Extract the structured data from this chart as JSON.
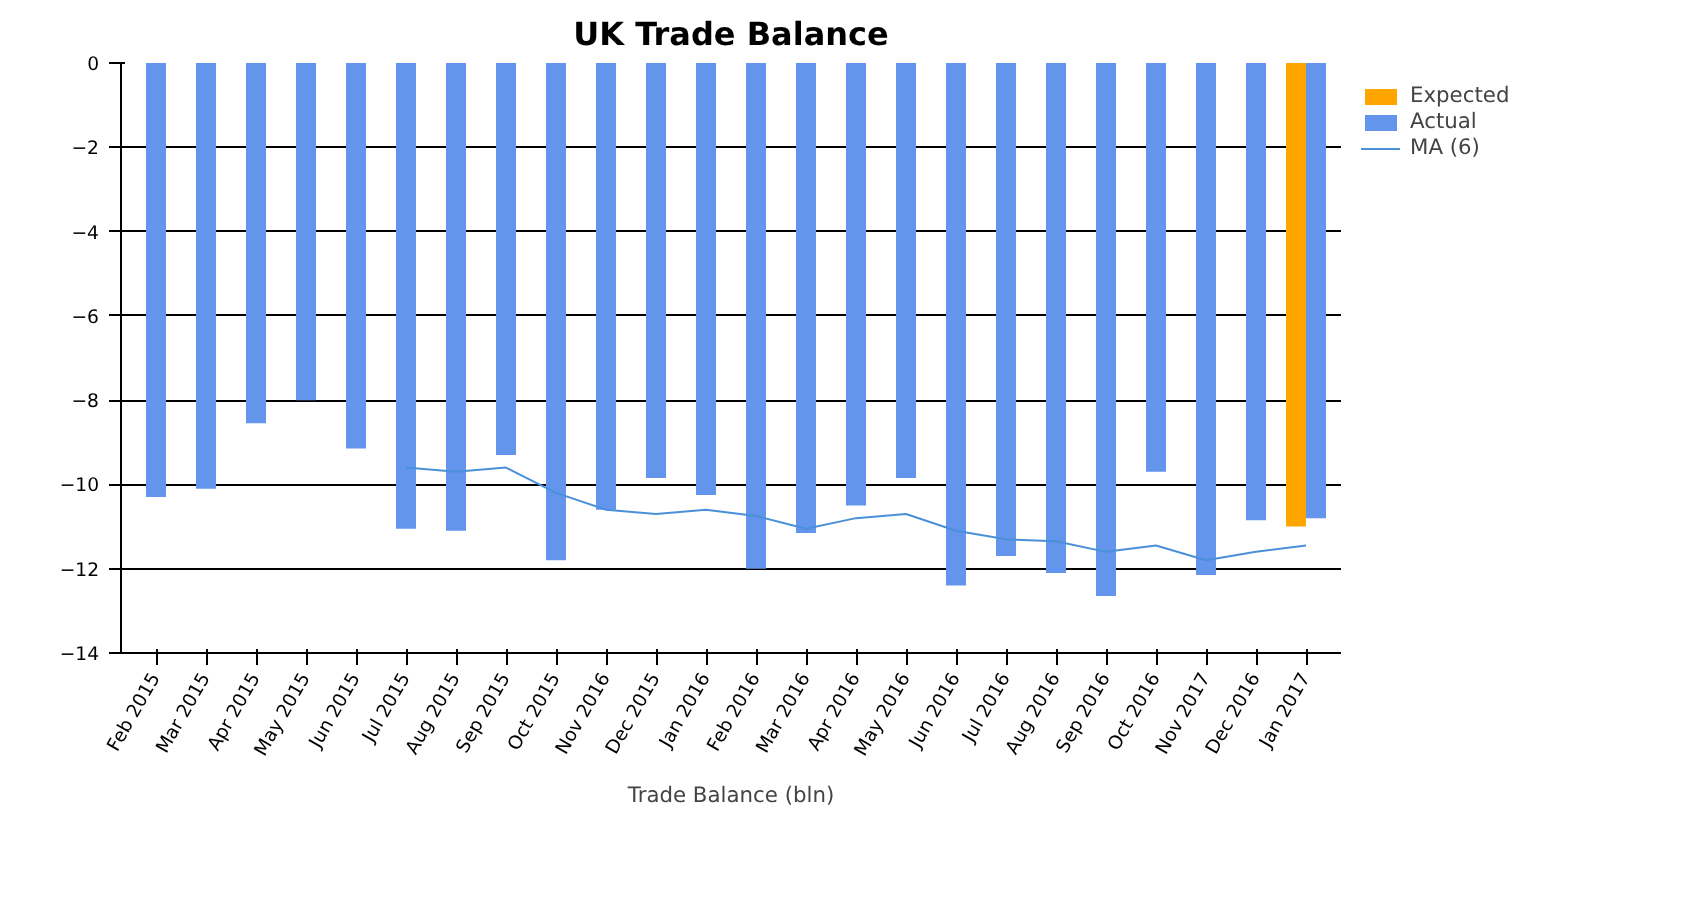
{
  "chart_data": {
    "type": "bar",
    "title": "UK Trade Balance",
    "xlabel": "Trade Balance (bln)",
    "categories": [
      "Feb 2015",
      "Mar 2015",
      "Apr 2015",
      "May 2015",
      "Jun 2015",
      "Jul 2015",
      "Aug 2015",
      "Sep 2015",
      "Oct 2015",
      "Nov 2016",
      "Dec 2015",
      "Jan 2016",
      "Feb 2016",
      "Mar 2016",
      "Apr 2016",
      "May 2016",
      "Jun 2016",
      "Jul 2016",
      "Aug 2016",
      "Sep 2016",
      "Oct 2016",
      "Nov 2017",
      "Dec 2016",
      "Jan 2017"
    ],
    "series": [
      {
        "name": "Expected",
        "color": "#ffa500",
        "values": [
          null,
          null,
          null,
          null,
          null,
          null,
          null,
          null,
          null,
          null,
          null,
          null,
          null,
          null,
          null,
          null,
          null,
          null,
          null,
          null,
          null,
          null,
          null,
          -11.0
        ]
      },
      {
        "name": "Actual",
        "color": "#6495ed",
        "values": [
          -10.3,
          -10.1,
          -8.55,
          -8.0,
          -9.15,
          -11.05,
          -11.1,
          -9.3,
          -11.8,
          -10.6,
          -9.85,
          -10.25,
          -12.0,
          -11.15,
          -10.5,
          -9.85,
          -12.4,
          -11.7,
          -12.1,
          -12.65,
          -9.7,
          -12.15,
          -10.85,
          -10.8
        ]
      },
      {
        "name": "MA (6)",
        "type": "line",
        "color": "#4a90d9",
        "values": [
          null,
          null,
          null,
          null,
          null,
          -9.6,
          -9.7,
          -9.6,
          -10.2,
          -10.6,
          -10.7,
          -10.6,
          -10.75,
          -11.05,
          -10.8,
          -10.7,
          -11.1,
          -11.3,
          -11.35,
          -11.6,
          -11.45,
          -11.8,
          -11.6,
          -11.45
        ]
      }
    ],
    "ylim": [
      -14,
      0
    ],
    "yticks": [
      0,
      -2,
      -4,
      -6,
      -8,
      -10,
      -12,
      -14
    ],
    "grid": "y",
    "legend": "top right"
  }
}
